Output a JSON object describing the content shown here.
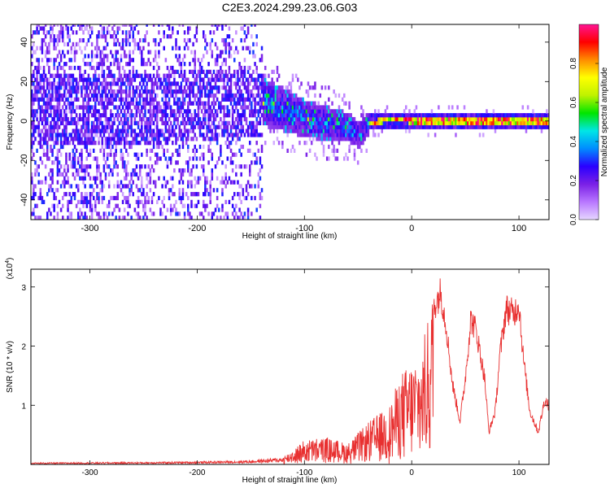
{
  "figure": {
    "title": "C2E3.2024.299.23.06.G03"
  },
  "chart_data": [
    {
      "type": "heatmap",
      "xlabel": "Height of straight line (km)",
      "ylabel": "Frequency (Hz)",
      "xlim": [
        -355,
        128
      ],
      "ylim": [
        -50,
        49
      ],
      "x_ticks": [
        -300,
        -200,
        -100,
        0,
        100
      ],
      "y_ticks": [
        -40,
        -20,
        0,
        20,
        40
      ],
      "colorbar": {
        "label": "Normalized spectral amplitude",
        "range": [
          0,
          1
        ],
        "ticks": [
          0.0,
          0.2,
          0.4,
          0.6,
          0.8
        ],
        "tick_labels": [
          "0.0",
          "0.2",
          "0.4",
          "0.6",
          "0.8"
        ],
        "colormap": [
          "#e6d6ff",
          "#b877ff",
          "#7a20e6",
          "#2a00ff",
          "#008cff",
          "#00e6e6",
          "#00e600",
          "#bff200",
          "#ffff00",
          "#ff8c00",
          "#ff0000",
          "#ff1493"
        ]
      },
      "band": {
        "noise_region_x": [
          -355,
          -140
        ],
        "transition_region_x": [
          -140,
          -40
        ],
        "narrow_line_region_x": [
          -40,
          128
        ],
        "center_frequency_points": [
          [
            -355,
            5
          ],
          [
            -300,
            6
          ],
          [
            -250,
            5
          ],
          [
            -200,
            7
          ],
          [
            -160,
            8
          ],
          [
            -140,
            9
          ],
          [
            -120,
            5
          ],
          [
            -100,
            0
          ],
          [
            -80,
            -2
          ],
          [
            -60,
            -4
          ],
          [
            -50,
            -8
          ],
          [
            -40,
            -2
          ],
          [
            -20,
            0
          ],
          [
            0,
            -1
          ],
          [
            50,
            -1
          ],
          [
            100,
            -1
          ],
          [
            128,
            -1
          ]
        ]
      }
    },
    {
      "type": "line",
      "xlabel": "Height of straight line (km)",
      "ylabel": "SNR (10 * v/v)",
      "yscale_label": "(x10",
      "yscale_exp": "4",
      "yscale_close": ")",
      "xlim": [
        -355,
        128
      ],
      "ylim": [
        0,
        3.3
      ],
      "x_ticks": [
        -300,
        -200,
        -100,
        0,
        100
      ],
      "y_ticks": [
        1,
        2,
        3
      ],
      "series": [
        {
          "color": "#e83030",
          "envelope": [
            [
              -355,
              0.03
            ],
            [
              -250,
              0.04
            ],
            [
              -200,
              0.05
            ],
            [
              -150,
              0.07
            ],
            [
              -120,
              0.12
            ],
            [
              -100,
              0.4
            ],
            [
              -80,
              0.45
            ],
            [
              -60,
              0.35
            ],
            [
              -40,
              0.7
            ],
            [
              -20,
              1.0
            ],
            [
              -10,
              1.5
            ],
            [
              0,
              1.7
            ],
            [
              10,
              1.9
            ],
            [
              20,
              2.9
            ],
            [
              27,
              3.2
            ],
            [
              32,
              2.6
            ],
            [
              38,
              1.5
            ],
            [
              45,
              0.8
            ],
            [
              50,
              1.6
            ],
            [
              55,
              2.7
            ],
            [
              60,
              2.5
            ],
            [
              68,
              1.6
            ],
            [
              72,
              0.6
            ],
            [
              78,
              1.0
            ],
            [
              82,
              2.0
            ],
            [
              88,
              2.9
            ],
            [
              95,
              2.8
            ],
            [
              100,
              3.0
            ],
            [
              104,
              2.0
            ],
            [
              110,
              1.0
            ],
            [
              118,
              0.6
            ],
            [
              124,
              1.2
            ],
            [
              128,
              1.1
            ]
          ]
        }
      ]
    }
  ]
}
